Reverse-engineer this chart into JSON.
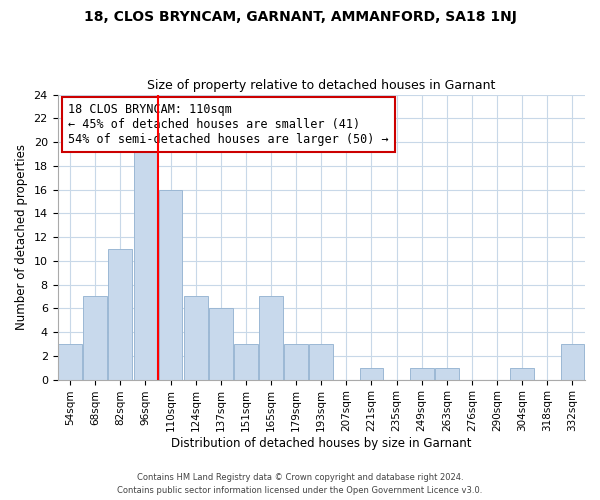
{
  "title": "18, CLOS BRYNCAM, GARNANT, AMMANFORD, SA18 1NJ",
  "subtitle": "Size of property relative to detached houses in Garnant",
  "xlabel": "Distribution of detached houses by size in Garnant",
  "ylabel": "Number of detached properties",
  "bar_color": "#c8d9ec",
  "bar_edge_color": "#9bb8d4",
  "grid_color": "#c8d8e8",
  "annotation_title": "18 CLOS BRYNCAM: 110sqm",
  "annotation_line1": "← 45% of detached houses are smaller (41)",
  "annotation_line2": "54% of semi-detached houses are larger (50) →",
  "footer1": "Contains HM Land Registry data © Crown copyright and database right 2024.",
  "footer2": "Contains public sector information licensed under the Open Government Licence v3.0.",
  "tick_labels": [
    "54sqm",
    "68sqm",
    "82sqm",
    "96sqm",
    "110sqm",
    "124sqm",
    "137sqm",
    "151sqm",
    "165sqm",
    "179sqm",
    "193sqm",
    "207sqm",
    "221sqm",
    "235sqm",
    "249sqm",
    "263sqm",
    "276sqm",
    "290sqm",
    "304sqm",
    "318sqm",
    "332sqm"
  ],
  "bar_heights": [
    3,
    7,
    11,
    20,
    16,
    7,
    6,
    3,
    7,
    3,
    3,
    0,
    1,
    0,
    1,
    1,
    0,
    0,
    1,
    0,
    3
  ],
  "ylim": [
    0,
    24
  ],
  "yticks": [
    0,
    2,
    4,
    6,
    8,
    10,
    12,
    14,
    16,
    18,
    20,
    22,
    24
  ],
  "n_bars": 21,
  "red_line_x": 3.5
}
